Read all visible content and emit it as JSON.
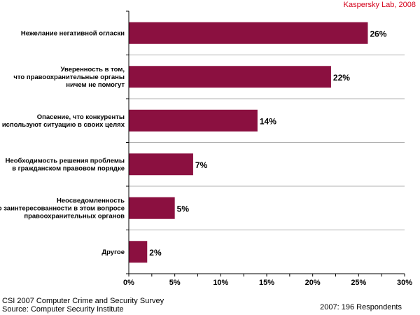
{
  "credit": "Kaspersky Lab, 2008",
  "source_line1": "CSI 2007 Computer Crime and Security Survey",
  "source_line2": "Source: Computer Security Institute",
  "respondents": "2007: 196 Respondents",
  "colors": {
    "bar": "#8b1040",
    "credit": "#d4001a",
    "grid": "#b0b0b0"
  },
  "chart_data": {
    "type": "bar",
    "orientation": "horizontal",
    "categories": [
      [
        "Нежелание негативной огласки"
      ],
      [
        "Уверенность в том,",
        "что правоохранительные органы",
        "ничем не помогут"
      ],
      [
        "Опасение, что конкуренты",
        "используют ситуацию в своих целях"
      ],
      [
        "Необходимость решения проблемы",
        "в гражданском правовом порядке"
      ],
      [
        "Неосведомленность",
        "о заинтересованности в этом вопросе",
        "правоохранительных органов"
      ],
      [
        "Другое"
      ]
    ],
    "values": [
      26,
      22,
      14,
      7,
      5,
      2
    ],
    "value_labels": [
      "26%",
      "22%",
      "14%",
      "7%",
      "5%",
      "2%"
    ],
    "xlim": [
      0,
      30
    ],
    "xticks": [
      0,
      5,
      10,
      15,
      20,
      25,
      30
    ],
    "xtick_labels": [
      "0%",
      "5%",
      "10%",
      "15%",
      "20%",
      "25%",
      "30%"
    ],
    "grid": "horizontal separators between categories",
    "legend": "none"
  }
}
